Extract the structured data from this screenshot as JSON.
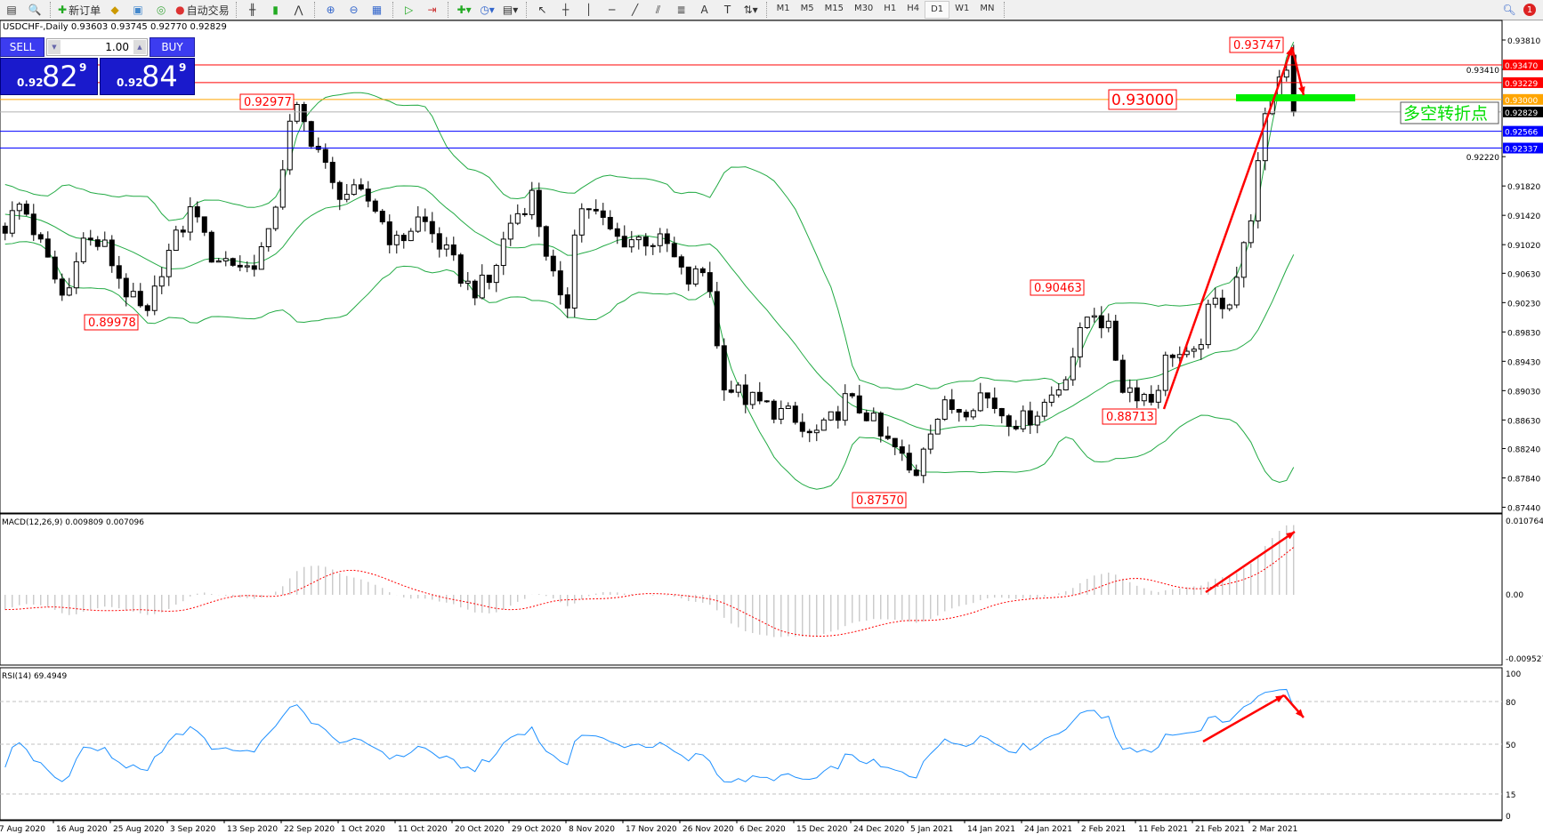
{
  "toolbar": {
    "new_order": "新订单",
    "auto_trade": "自动交易",
    "timeframes": [
      "M1",
      "M5",
      "M15",
      "M30",
      "H1",
      "H4",
      "D1",
      "W1",
      "MN"
    ],
    "active_timeframe": "D1",
    "notification_count": "1"
  },
  "chart": {
    "header": "USDCHF-,Daily  0.93603 0.93745 0.92770 0.92829"
  },
  "trade_panel": {
    "sell_label": "SELL",
    "buy_label": "BUY",
    "lot": "1.00",
    "sell_prefix": "0.92",
    "sell_big": "82",
    "sell_sup": "9",
    "buy_prefix": "0.92",
    "buy_big": "84",
    "buy_sup": "9"
  },
  "chart_data": {
    "type": "candlestick",
    "symbol": "USDCHF-",
    "timeframe": "Daily",
    "ohlc_last": {
      "open": 0.93603,
      "high": 0.93745,
      "low": 0.9277,
      "close": 0.92829
    },
    "price_ticks": [
      "0.93810",
      "0.93410",
      "0.92220",
      "0.91820",
      "0.91420",
      "0.91020",
      "0.90630",
      "0.90230",
      "0.89830",
      "0.89430",
      "0.89030",
      "0.88630",
      "0.88240",
      "0.87840",
      "0.87440"
    ],
    "date_labels": [
      "7 Aug 2020",
      "16 Aug 2020",
      "25 Aug 2020",
      "3 Sep 2020",
      "13 Sep 2020",
      "22 Sep 2020",
      "1 Oct 2020",
      "11 Oct 2020",
      "20 Oct 2020",
      "29 Oct 2020",
      "8 Nov 2020",
      "17 Nov 2020",
      "26 Nov 2020",
      "6 Dec 2020",
      "15 Dec 2020",
      "24 Dec 2020",
      "5 Jan 2021",
      "14 Jan 2021",
      "24 Jan 2021",
      "2 Feb 2021",
      "11 Feb 2021",
      "21 Feb 2021",
      "2 Mar 2021"
    ],
    "close_waypoints": [
      [
        "7 Aug 2020",
        0.911
      ],
      [
        "11 Aug 2020",
        0.916
      ],
      [
        "14 Aug 2020",
        0.91
      ],
      [
        "18 Aug 2020",
        0.902
      ],
      [
        "20 Aug 2020",
        0.911
      ],
      [
        "24 Aug 2020",
        0.91
      ],
      [
        "28 Aug 2020",
        0.903
      ],
      [
        "31 Aug 2020",
        0.9
      ],
      [
        "2 Sep 2020",
        0.907
      ],
      [
        "8 Sep 2020",
        0.916
      ],
      [
        "10 Sep 2020",
        0.909
      ],
      [
        "17 Sep 2020",
        0.907
      ],
      [
        "20 Sep 2020",
        0.911
      ],
      [
        "22 Sep 2020",
        0.92
      ],
      [
        "24 Sep 2020",
        0.929
      ],
      [
        "28 Sep 2020",
        0.923
      ],
      [
        "30 Sep 2020",
        0.918
      ],
      [
        "7 Oct 2020",
        0.916
      ],
      [
        "11 Oct 2020",
        0.91
      ],
      [
        "15 Oct 2020",
        0.914
      ],
      [
        "19 Oct 2020",
        0.909
      ],
      [
        "23 Oct 2020",
        0.904
      ],
      [
        "26 Oct 2020",
        0.905
      ],
      [
        "29 Oct 2020",
        0.913
      ],
      [
        "2 Nov 2020",
        0.917
      ],
      [
        "5 Nov 2020",
        0.908
      ],
      [
        "8 Nov 2020",
        0.899
      ],
      [
        "9 Nov 2020",
        0.912
      ],
      [
        "11 Nov 2020",
        0.916
      ],
      [
        "16 Nov 2020",
        0.911
      ],
      [
        "21 Nov 2020",
        0.911
      ],
      [
        "24 Nov 2020",
        0.91
      ],
      [
        "27 Nov 2020",
        0.905
      ],
      [
        "1 Dec 2020",
        0.907
      ],
      [
        "2 Dec 2020",
        0.898
      ],
      [
        "4 Dec 2020",
        0.891
      ],
      [
        "8 Dec 2020",
        0.889
      ],
      [
        "11 Dec 2020",
        0.888
      ],
      [
        "14 Dec 2020",
        0.887
      ],
      [
        "17 Dec 2020",
        0.884
      ],
      [
        "20 Dec 2020",
        0.885
      ],
      [
        "23 Dec 2020",
        0.889
      ],
      [
        "28 Dec 2020",
        0.887
      ],
      [
        "30 Dec 2020",
        0.884
      ],
      [
        "3 Jan 2021",
        0.882
      ],
      [
        "6 Jan 2021",
        0.878
      ],
      [
        "8 Jan 2021",
        0.885
      ],
      [
        "11 Jan 2021",
        0.888
      ],
      [
        "14 Jan 2021",
        0.888
      ],
      [
        "17 Jan 2021",
        0.89
      ],
      [
        "21 Jan 2021",
        0.887
      ],
      [
        "24 Jan 2021",
        0.886
      ],
      [
        "27 Jan 2021",
        0.888
      ],
      [
        "30 Jan 2021",
        0.891
      ],
      [
        "2 Feb 2021",
        0.897
      ],
      [
        "4 Feb 2021",
        0.902
      ],
      [
        "7 Feb 2021",
        0.898
      ],
      [
        "9 Feb 2021",
        0.891
      ],
      [
        "12 Feb 2021",
        0.89
      ],
      [
        "14 Feb 2021",
        0.889
      ],
      [
        "17 Feb 2021",
        0.896
      ],
      [
        "21 Feb 2021",
        0.894
      ],
      [
        "24 Feb 2021",
        0.902
      ],
      [
        "27 Feb 2021",
        0.903
      ],
      [
        "1 Mar 2021",
        0.909
      ],
      [
        "3 Mar 2021",
        0.918
      ],
      [
        "4 Mar 2021",
        0.925
      ],
      [
        "6 Mar 2021",
        0.932
      ],
      [
        "8 Mar 2021",
        0.935
      ],
      [
        "9 Mar 2021",
        0.92829
      ]
    ],
    "hlines": [
      {
        "price": "0.93470",
        "color": "#ff0000"
      },
      {
        "price": "0.93229",
        "color": "#ff0000"
      },
      {
        "price": "0.93000",
        "color": "#ffa500"
      },
      {
        "price": "0.92829",
        "color": "#000000"
      },
      {
        "price": "0.92566",
        "color": "#0000ff"
      },
      {
        "price": "0.92337",
        "color": "#0000ff"
      }
    ],
    "price_labels": [
      "0.93747",
      "0.92977",
      "0.89978",
      "0.90463",
      "0.88713",
      "0.87570"
    ],
    "pivot_label": "0.93000",
    "pivot_text": "多空转折点",
    "indicator_colors": {
      "bollinger": "#22aa44",
      "macd_hist": "#c0c0c0",
      "macd_signal": "#ff0000",
      "rsi": "#1e90ff",
      "arrow": "#ff0000"
    },
    "macd": {
      "label": "MACD(12,26,9) 0.009809 0.007096",
      "ticks": [
        "0.010764",
        "0.00",
        "-0.009527"
      ]
    },
    "rsi": {
      "label": "RSI(14) 69.4949",
      "ticks": [
        "100",
        "80",
        "50",
        "15",
        "0"
      ]
    }
  }
}
